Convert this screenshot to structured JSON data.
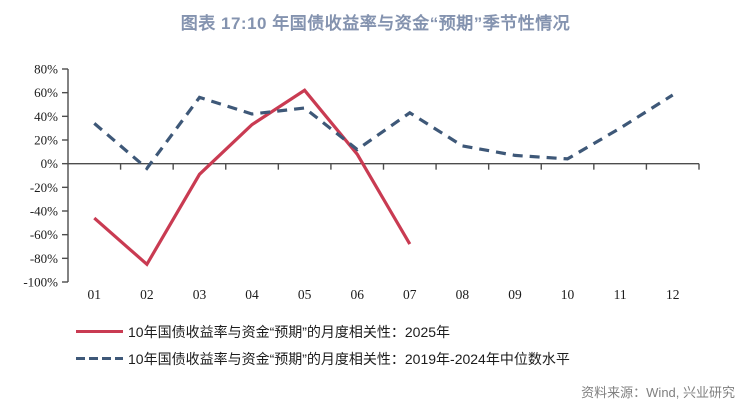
{
  "title": "图表 17:10 年国债收益率与资金“预期”季节性情况",
  "source": "资料来源：Wind, 兴业研究",
  "colors": {
    "title_text": "#8493af",
    "solid_line": "#c93b52",
    "dashed_line": "#3e5878",
    "axis": "#4d4d4d",
    "tick_label": "#1c1c1c",
    "source_text": "#808080"
  },
  "chart_data": {
    "type": "line",
    "x": [
      "01",
      "02",
      "03",
      "04",
      "05",
      "06",
      "07",
      "08",
      "09",
      "10",
      "11",
      "12"
    ],
    "series": [
      {
        "name": "10年国债收益率与资金“预期”的月度相关性：2025年",
        "style": "solid",
        "color": "#c93b52",
        "values": [
          -46,
          -85,
          -9,
          33,
          62,
          8,
          -68,
          null,
          null,
          null,
          null,
          null
        ]
      },
      {
        "name": "10年国债收益率与资金“预期”的月度相关性：2019年-2024年中位数水平",
        "style": "dashed",
        "color": "#3e5878",
        "values": [
          34,
          -4,
          56,
          42,
          47,
          12,
          43,
          15,
          7,
          4,
          30,
          58
        ]
      }
    ],
    "ylim": [
      -100,
      80
    ],
    "ytick_step": 20,
    "ytick_labels": [
      "80%",
      "60%",
      "40%",
      "20%",
      "0%",
      "-20%",
      "-40%",
      "-60%",
      "-80%",
      "-100%"
    ],
    "xlabel": "",
    "ylabel": "",
    "grid": false,
    "legend_position": "bottom-left"
  }
}
